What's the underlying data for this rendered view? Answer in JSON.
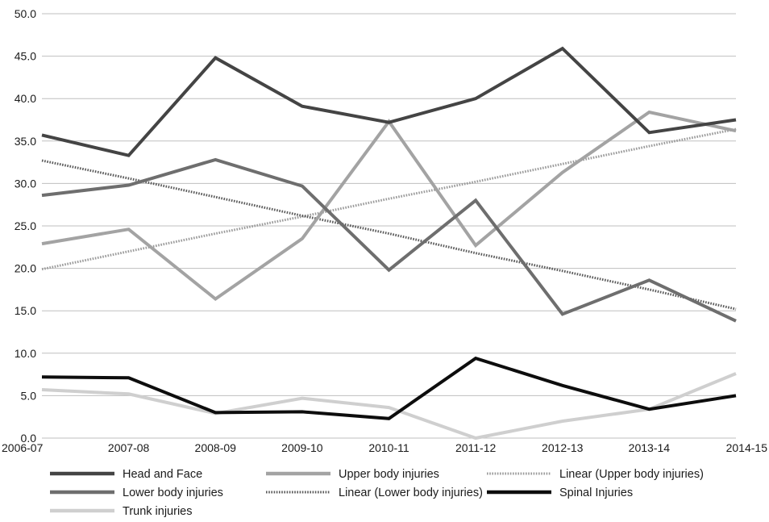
{
  "chart_data": {
    "type": "line",
    "title": "",
    "xlabel": "",
    "ylabel": "",
    "categories": [
      "2006-07",
      "2007-08",
      "2008-09",
      "2009-10",
      "2010-11",
      "2011-12",
      "2012-13",
      "2013-14",
      "2014-15"
    ],
    "ylim": [
      0,
      50
    ],
    "yticks": [
      "0.0",
      "5.0",
      "10.0",
      "15.0",
      "20.0",
      "25.0",
      "30.0",
      "35.0",
      "40.0",
      "45.0",
      "50.0"
    ],
    "grid": "horizontal",
    "legend_position": "bottom",
    "series": [
      {
        "name": "Head and Face",
        "color": "#444444",
        "style": "solid",
        "values": [
          35.7,
          33.3,
          44.8,
          39.1,
          37.2,
          40.0,
          45.9,
          36.0,
          37.5
        ]
      },
      {
        "name": "Upper body injuries",
        "color": "#a3a3a3",
        "style": "solid",
        "values": [
          22.9,
          24.6,
          16.4,
          23.5,
          37.3,
          22.7,
          31.3,
          38.4,
          36.2
        ]
      },
      {
        "name": "Linear (Upper body injuries)",
        "color": "#9a9a9a",
        "style": "dotted",
        "values": [
          19.9,
          22.0,
          24.1,
          26.1,
          28.2,
          30.2,
          32.3,
          34.4,
          36.4
        ]
      },
      {
        "name": "Lower body injuries",
        "color": "#6e6e6e",
        "style": "solid",
        "values": [
          28.6,
          29.8,
          32.8,
          29.7,
          19.8,
          28.0,
          14.6,
          18.6,
          13.8
        ]
      },
      {
        "name": "Linear (Lower body injuries)",
        "color": "#5a5a5a",
        "style": "dotted",
        "values": [
          32.7,
          30.6,
          28.4,
          26.2,
          24.1,
          21.8,
          19.7,
          17.5,
          15.2
        ]
      },
      {
        "name": "Spinal Injuries",
        "color": "#0d0d0d",
        "style": "solid",
        "values": [
          7.2,
          7.1,
          3.0,
          3.1,
          2.3,
          9.4,
          6.2,
          3.4,
          5.0
        ]
      },
      {
        "name": "Trunk injuries",
        "color": "#cfcfcf",
        "style": "solid",
        "values": [
          5.7,
          5.2,
          2.9,
          4.7,
          3.6,
          0.0,
          2.0,
          3.4,
          7.6
        ]
      }
    ]
  }
}
